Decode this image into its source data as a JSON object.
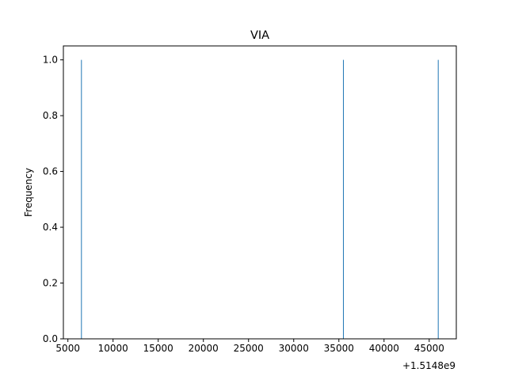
{
  "chart_data": {
    "type": "bar",
    "title": "VIA",
    "xlabel": "",
    "ylabel": "Frequency",
    "x_offset_label": "+1.5148e9",
    "x": [
      6500,
      35500,
      46000
    ],
    "values": [
      1.0,
      1.0,
      1.0
    ],
    "xlim": [
      4500,
      48000
    ],
    "ylim": [
      0,
      1.05
    ],
    "x_ticks": [
      5000,
      10000,
      15000,
      20000,
      25000,
      30000,
      35000,
      40000,
      45000
    ],
    "x_tick_labels": [
      "5000",
      "10000",
      "15000",
      "20000",
      "25000",
      "30000",
      "35000",
      "40000",
      "45000"
    ],
    "y_ticks": [
      0.0,
      0.2,
      0.4,
      0.6,
      0.8,
      1.0
    ],
    "y_tick_labels": [
      "0.0",
      "0.2",
      "0.4",
      "0.6",
      "0.8",
      "1.0"
    ],
    "grid": false,
    "bar_color": "#1f77b4"
  }
}
